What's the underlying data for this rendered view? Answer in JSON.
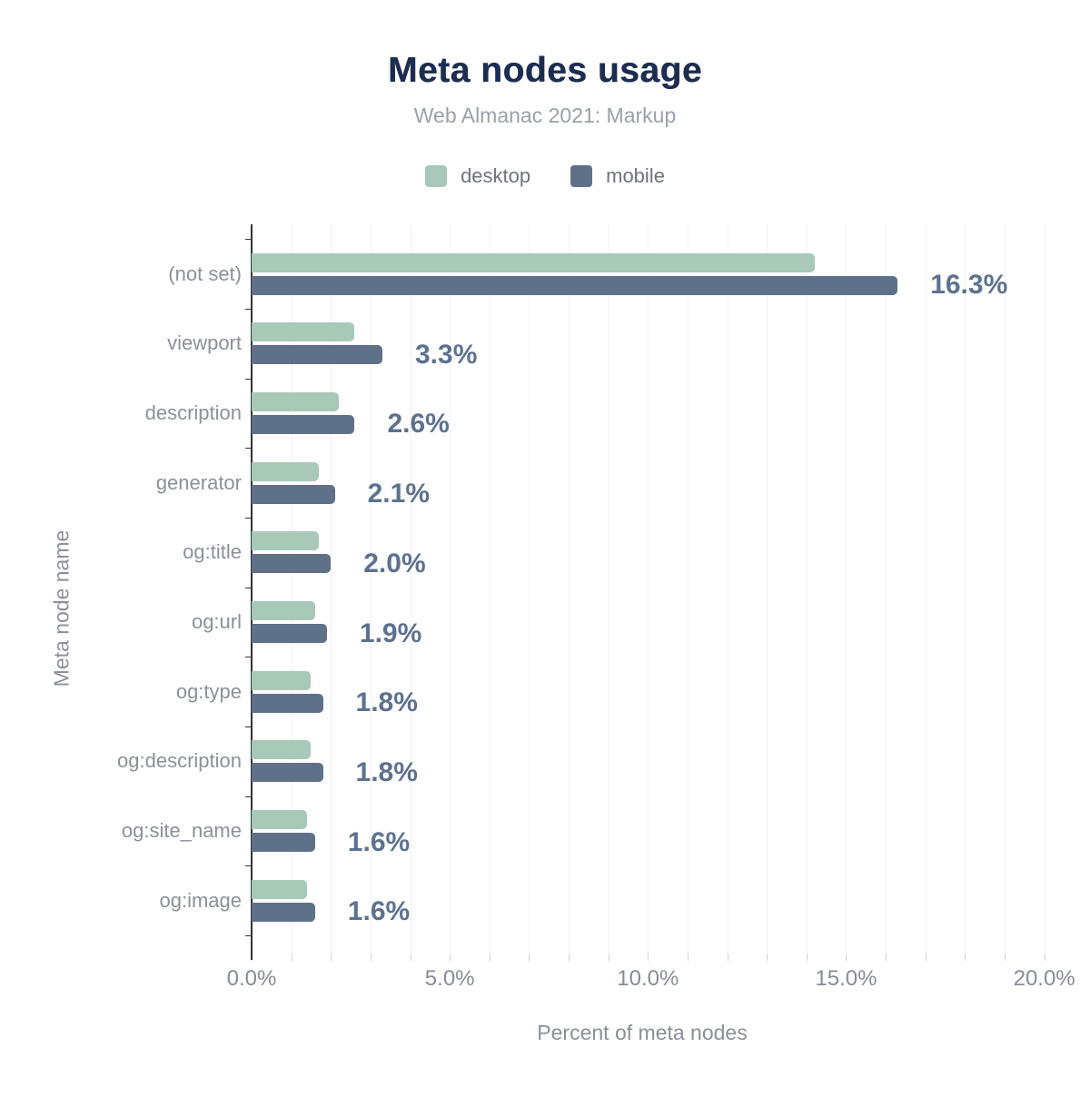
{
  "title": "Meta nodes usage",
  "subtitle": "Web Almanac 2021: Markup",
  "legend": {
    "items": [
      {
        "label": "desktop",
        "color": "#a8c9b8"
      },
      {
        "label": "mobile",
        "color": "#5f7089"
      }
    ]
  },
  "colors": {
    "desktop_bar": "#a8c9b8",
    "mobile_bar": "#5f7089",
    "value_label": "#5d7190",
    "title_text": "#1d2d52",
    "subtitle_text": "#9aa0ab",
    "axis_line": "#2f3338",
    "gridline": "#f2f2f4",
    "tick_text": "#878c97"
  },
  "chart_data": {
    "type": "bar",
    "orientation": "horizontal",
    "title": "Meta nodes usage",
    "subtitle": "Web Almanac 2021: Markup",
    "xlabel": "Percent of meta nodes",
    "ylabel": "Meta node name",
    "legend_position": "top",
    "grid": "vertical gridlines every 1%",
    "xlim": [
      0,
      20.65
    ],
    "x_tick_values": [
      0,
      5,
      10,
      15,
      20
    ],
    "x_tick_labels": [
      "0.0%",
      "5.0%",
      "10.0%",
      "15.0%",
      "20.0%"
    ],
    "categories": [
      "(not set)",
      "viewport",
      "description",
      "generator",
      "og:title",
      "og:url",
      "og:type",
      "og:description",
      "og:site_name",
      "og:image"
    ],
    "series": [
      {
        "name": "desktop",
        "values": [
          14.2,
          2.6,
          2.2,
          1.7,
          1.7,
          1.6,
          1.5,
          1.5,
          1.4,
          1.4
        ]
      },
      {
        "name": "mobile",
        "values": [
          16.3,
          3.3,
          2.6,
          2.1,
          2.0,
          1.9,
          1.8,
          1.8,
          1.6,
          1.6
        ]
      }
    ],
    "bar_labels": [
      "16.3%",
      "3.3%",
      "2.6%",
      "2.1%",
      "2.0%",
      "1.9%",
      "1.8%",
      "1.8%",
      "1.6%",
      "1.6%"
    ]
  }
}
